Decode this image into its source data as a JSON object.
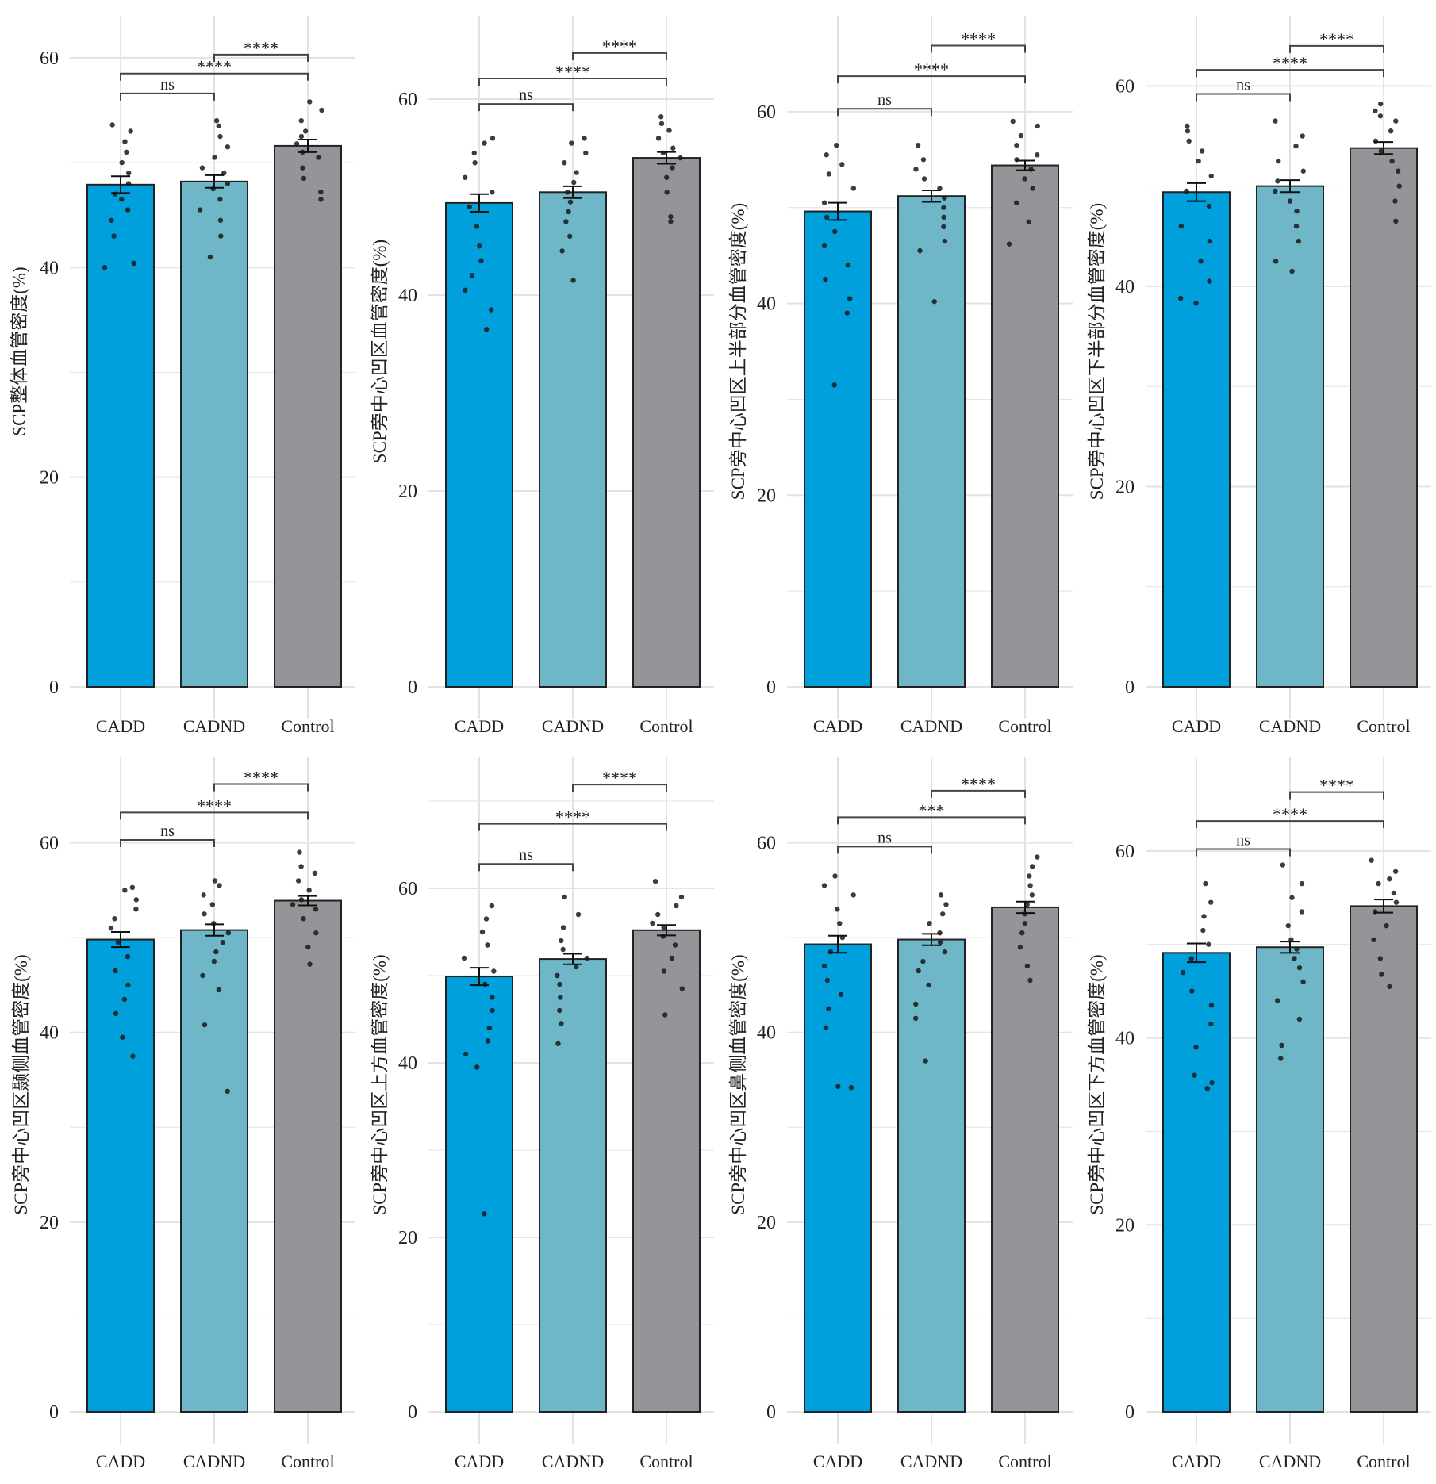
{
  "colors": {
    "CADD": "#00a0dc",
    "CADND": "#6fb7c8",
    "Control": "#939598",
    "grid": "#e3e3e3",
    "point": "#1a1a1a"
  },
  "chart_data": [
    {
      "type": "bar",
      "ylabel": "SCP整体血管密度(%)",
      "categories": [
        "CADD",
        "CADND",
        "Control"
      ],
      "values": [
        47.9,
        48.2,
        51.6
      ],
      "errors": [
        0.8,
        0.6,
        0.6
      ],
      "ylim": [
        0,
        64
      ],
      "yticks": [
        0,
        20,
        40,
        60
      ],
      "grid": true,
      "points": [
        [
          40,
          40.4,
          43,
          44.5,
          45.5,
          46.5,
          47,
          48,
          49,
          50,
          51,
          52,
          53,
          53.6
        ],
        [
          41,
          43,
          44.5,
          45.5,
          46.5,
          47.5,
          48,
          49,
          49.5,
          50.5,
          51.5,
          52.5,
          53.5,
          54
        ],
        [
          46.5,
          47.2,
          48.5,
          49.5,
          50.5,
          51,
          51.8,
          52.5,
          53,
          54,
          55,
          55.8
        ]
      ],
      "brackets": [
        {
          "from": 0,
          "to": 1,
          "y": 56.6,
          "label": "ns"
        },
        {
          "from": 0,
          "to": 2,
          "y": 58.5,
          "label": "****"
        },
        {
          "from": 1,
          "to": 2,
          "y": 60.3,
          "label": "****"
        }
      ]
    },
    {
      "type": "bar",
      "ylabel": "SCP旁中心凹区血管密度(%)",
      "categories": [
        "CADD",
        "CADND",
        "Control"
      ],
      "values": [
        49.4,
        50.5,
        54.0
      ],
      "errors": [
        0.9,
        0.6,
        0.6
      ],
      "ylim": [
        0,
        68.5
      ],
      "yticks": [
        0,
        20,
        40,
        60
      ],
      "grid": true,
      "points": [
        [
          36.5,
          38.5,
          40.5,
          42,
          43.5,
          45,
          47,
          49,
          50.5,
          52,
          53.5,
          54.5,
          55.5,
          56
        ],
        [
          41.5,
          44.5,
          46,
          47.5,
          48.5,
          49.5,
          50.5,
          51.5,
          52.5,
          53.5,
          54.5,
          55.5,
          56
        ],
        [
          47.5,
          48,
          50.5,
          52,
          53,
          54,
          54.5,
          55,
          56,
          56.8,
          57.5,
          58.2
        ]
      ],
      "brackets": [
        {
          "from": 0,
          "to": 1,
          "y": 59.5,
          "label": "ns"
        },
        {
          "from": 0,
          "to": 2,
          "y": 62.1,
          "label": "****"
        },
        {
          "from": 1,
          "to": 2,
          "y": 64.7,
          "label": "****"
        }
      ]
    },
    {
      "type": "bar",
      "ylabel": "SCP旁中心凹区上半部分血管密度(%)",
      "categories": [
        "CADD",
        "CADND",
        "Control"
      ],
      "values": [
        49.6,
        51.2,
        54.4
      ],
      "errors": [
        0.9,
        0.6,
        0.5
      ],
      "ylim": [
        0,
        70
      ],
      "yticks": [
        0,
        20,
        40,
        60
      ],
      "grid": true,
      "points": [
        [
          31.5,
          39,
          40.5,
          42.5,
          44,
          46,
          47.5,
          49,
          50.5,
          52,
          53.5,
          54.5,
          55.5,
          56.5
        ],
        [
          40.2,
          45.5,
          46.5,
          48,
          49,
          50,
          51,
          52,
          53,
          54,
          55,
          56.5
        ],
        [
          46.2,
          48.5,
          50.5,
          52,
          53,
          54,
          55,
          55.5,
          56.5,
          57.5,
          58.5,
          59
        ]
      ],
      "brackets": [
        {
          "from": 0,
          "to": 1,
          "y": 60.3,
          "label": "ns"
        },
        {
          "from": 0,
          "to": 2,
          "y": 63.7,
          "label": "****"
        },
        {
          "from": 1,
          "to": 2,
          "y": 66.9,
          "label": "****"
        }
      ]
    },
    {
      "type": "bar",
      "ylabel": "SCP旁中心凹区下半部分血管密度(%)",
      "categories": [
        "CADD",
        "CADND",
        "Control"
      ],
      "values": [
        49.4,
        50.0,
        53.8
      ],
      "errors": [
        0.9,
        0.6,
        0.6
      ],
      "ylim": [
        0,
        67
      ],
      "yticks": [
        0,
        20,
        40,
        60
      ],
      "grid": true,
      "points": [
        [
          38.3,
          38.8,
          40.5,
          42.5,
          44.5,
          46,
          48,
          49.5,
          51,
          52.5,
          53.5,
          54.5,
          55.5,
          56
        ],
        [
          41.5,
          42.5,
          44.5,
          46,
          47.5,
          48.5,
          49.5,
          50.5,
          51.5,
          52.5,
          54,
          55,
          56.5
        ],
        [
          46.5,
          48.5,
          50,
          51.5,
          52.5,
          53.5,
          54.5,
          55.5,
          56.5,
          57,
          57.5,
          58.2
        ]
      ],
      "brackets": [
        {
          "from": 0,
          "to": 1,
          "y": 59.2,
          "label": "ns"
        },
        {
          "from": 0,
          "to": 2,
          "y": 61.6,
          "label": "****"
        },
        {
          "from": 1,
          "to": 2,
          "y": 64.0,
          "label": "****"
        }
      ]
    },
    {
      "type": "bar",
      "ylabel": "SCP旁中心凹区颞侧血管密度(%)",
      "categories": [
        "CADD",
        "CADND",
        "Control"
      ],
      "values": [
        49.8,
        50.8,
        53.9
      ],
      "errors": [
        0.8,
        0.6,
        0.5
      ],
      "ylim": [
        0,
        69
      ],
      "yticks": [
        0,
        20,
        40,
        60
      ],
      "grid": true,
      "points": [
        [
          37.5,
          39.5,
          42,
          43.5,
          45,
          46.5,
          48,
          49.5,
          51,
          52,
          53,
          54,
          55,
          55.3
        ],
        [
          33.8,
          40.8,
          44.5,
          46,
          47.5,
          48.5,
          49.5,
          50.5,
          51.5,
          52.5,
          53.5,
          54.5,
          55.5,
          56
        ],
        [
          47.2,
          49,
          50.5,
          52,
          53,
          53.5,
          54,
          55,
          56,
          56.8,
          57.5,
          59
        ]
      ],
      "brackets": [
        {
          "from": 0,
          "to": 1,
          "y": 60.3,
          "label": "ns"
        },
        {
          "from": 0,
          "to": 2,
          "y": 63.2,
          "label": "****"
        },
        {
          "from": 1,
          "to": 2,
          "y": 66.2,
          "label": "****"
        }
      ]
    },
    {
      "type": "bar",
      "ylabel": "SCP旁中心凹区上方血管密度(%)",
      "categories": [
        "CADD",
        "CADND",
        "Control"
      ],
      "values": [
        49.9,
        51.9,
        55.2
      ],
      "errors": [
        1.0,
        0.6,
        0.6
      ],
      "ylim": [
        0,
        75
      ],
      "yticks": [
        0,
        20,
        40,
        60
      ],
      "grid": true,
      "points": [
        [
          22.7,
          39.5,
          41,
          42.5,
          44,
          46,
          47.5,
          49,
          50.5,
          52,
          53.5,
          55,
          56.5,
          58
        ],
        [
          42.2,
          44.5,
          46,
          47.5,
          49,
          50,
          51,
          52,
          53,
          54,
          55.5,
          57,
          59
        ],
        [
          45.5,
          48.5,
          50.5,
          52,
          53.5,
          54.5,
          55.5,
          56,
          57,
          58,
          59,
          60.8
        ]
      ],
      "brackets": [
        {
          "from": 0,
          "to": 1,
          "y": 62.8,
          "label": "ns"
        },
        {
          "from": 0,
          "to": 2,
          "y": 67.4,
          "label": "****"
        },
        {
          "from": 1,
          "to": 2,
          "y": 71.9,
          "label": "****"
        }
      ]
    },
    {
      "type": "bar",
      "ylabel": "SCP旁中心凹区鼻侧血管密度(%)",
      "categories": [
        "CADD",
        "CADND",
        "Control"
      ],
      "values": [
        49.3,
        49.8,
        53.2
      ],
      "errors": [
        0.9,
        0.6,
        0.6
      ],
      "ylim": [
        0,
        69
      ],
      "yticks": [
        0,
        20,
        40,
        60
      ],
      "grid": true,
      "points": [
        [
          34.2,
          34.3,
          40.5,
          42.5,
          44,
          45.5,
          47,
          48.5,
          50,
          51.5,
          53,
          54.5,
          55.5,
          56.5
        ],
        [
          37,
          41.5,
          43,
          45,
          46.5,
          47.5,
          48.5,
          49.5,
          50.5,
          51.5,
          52.5,
          53.5,
          54.5
        ],
        [
          45.5,
          47,
          49,
          50.5,
          51.5,
          52.5,
          53.5,
          54.5,
          55.5,
          56.5,
          57.5,
          58.5
        ]
      ],
      "brackets": [
        {
          "from": 0,
          "to": 1,
          "y": 59.6,
          "label": "ns"
        },
        {
          "from": 0,
          "to": 2,
          "y": 62.7,
          "label": "***"
        },
        {
          "from": 1,
          "to": 2,
          "y": 65.5,
          "label": "****"
        }
      ]
    },
    {
      "type": "bar",
      "ylabel": "SCP旁中心凹区下方血管密度(%)",
      "categories": [
        "CADD",
        "CADND",
        "Control"
      ],
      "values": [
        49.1,
        49.7,
        54.1
      ],
      "errors": [
        1.0,
        0.6,
        0.7
      ],
      "ylim": [
        0,
        70
      ],
      "yticks": [
        0,
        20,
        40,
        60
      ],
      "grid": true,
      "points": [
        [
          34.6,
          35.2,
          36,
          39,
          41.5,
          43.5,
          45,
          47,
          48.5,
          50,
          51.5,
          53,
          54.5,
          56.5
        ],
        [
          37.8,
          39.2,
          42,
          44,
          46,
          47.5,
          48.5,
          49.5,
          50.5,
          52,
          53.5,
          55,
          56.5,
          58.5
        ],
        [
          45.5,
          46.8,
          48.5,
          50.5,
          52,
          53.5,
          54.5,
          55.5,
          56.5,
          57,
          57.8,
          59
        ]
      ],
      "brackets": [
        {
          "from": 0,
          "to": 1,
          "y": 60.2,
          "label": "ns"
        },
        {
          "from": 0,
          "to": 2,
          "y": 63.2,
          "label": "****"
        },
        {
          "from": 1,
          "to": 2,
          "y": 66.3,
          "label": "****"
        }
      ]
    }
  ]
}
